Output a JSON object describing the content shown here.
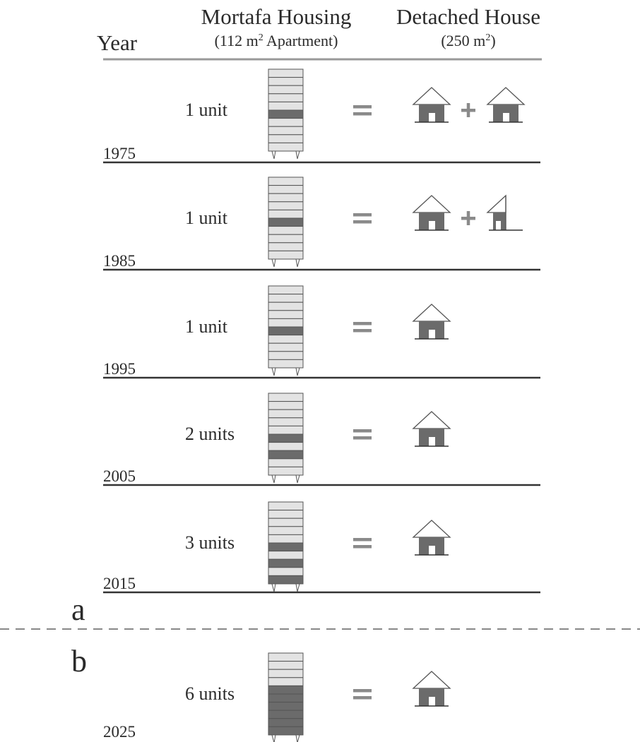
{
  "header": {
    "year_label": "Year",
    "col1_title": "Mortafa Housing",
    "col1_subtitle_pre": "(112 m",
    "col1_subtitle_sup": "2",
    "col1_subtitle_post": " Apartment)",
    "col2_title": "Detached House",
    "col2_subtitle_pre": "(250 m",
    "col2_subtitle_sup": "2",
    "col2_subtitle_post": ")"
  },
  "panel_labels": {
    "a": "a",
    "b": "b"
  },
  "equals_symbol": "=",
  "plus_symbol": "+",
  "rows": [
    {
      "year": "1975",
      "units_label": "1 unit",
      "dark_floors": 1,
      "houses": 2
    },
    {
      "year": "1985",
      "units_label": "1 unit",
      "dark_floors": 1,
      "houses": 1.5
    },
    {
      "year": "1995",
      "units_label": "1 unit",
      "dark_floors": 1,
      "houses": 1
    },
    {
      "year": "2005",
      "units_label": "2 units",
      "dark_floors": 2,
      "houses": 1
    },
    {
      "year": "2015",
      "units_label": "3 units",
      "dark_floors": 3,
      "houses": 1
    },
    {
      "year": "2025",
      "units_label": "6 units",
      "dark_floors": 6,
      "houses": 1
    }
  ],
  "colors": {
    "dark_floor": "#6b6b6b",
    "light_floor": "#e3e3e3",
    "outline": "#555555",
    "equals": "#8a8a8a",
    "rule": "#333333",
    "header_rule": "#999999",
    "dashed": "#888888"
  }
}
